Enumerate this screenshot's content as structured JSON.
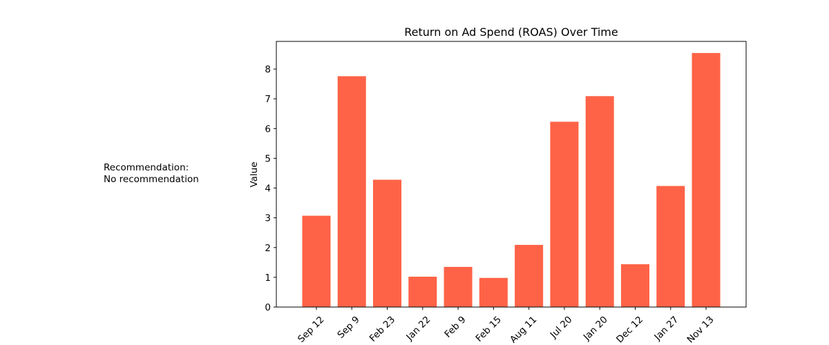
{
  "recommendation": {
    "heading": "Recommendation:",
    "text": "No recommendation"
  },
  "chart_data": {
    "type": "bar",
    "title": "Return on Ad Spend (ROAS) Over Time",
    "xlabel": "",
    "ylabel": "Value",
    "categories": [
      "Sep 12",
      "Sep 9",
      "Feb 23",
      "Jan 22",
      "Feb 9",
      "Feb 15",
      "Aug 11",
      "Jul 20",
      "Jan 20",
      "Dec 12",
      "Jan 27",
      "Nov 13"
    ],
    "values": [
      3.07,
      7.76,
      4.28,
      1.02,
      1.35,
      0.98,
      2.09,
      6.23,
      7.09,
      1.44,
      4.07,
      8.54
    ],
    "ylim": [
      0,
      8.93
    ],
    "yticks": [
      0,
      1,
      2,
      3,
      4,
      5,
      6,
      7,
      8
    ],
    "bar_color": "#ff6347",
    "grid": false,
    "legend": "none"
  }
}
